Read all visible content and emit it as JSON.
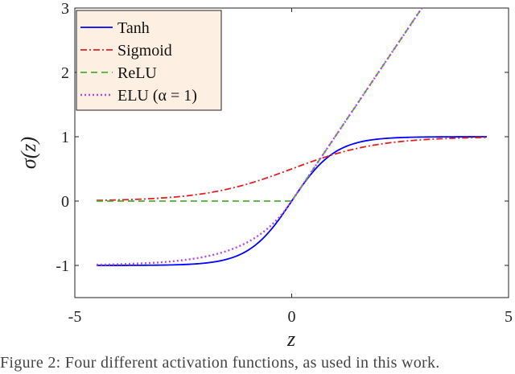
{
  "chart_data": {
    "type": "line",
    "xlabel": "z",
    "ylabel": "σ(z)",
    "xlim": [
      -5,
      5
    ],
    "ylim": [
      -1.5,
      3
    ],
    "x_ticks": [
      "-5",
      "0",
      "5"
    ],
    "y_ticks": [
      "-1",
      "0",
      "1",
      "2",
      "3"
    ],
    "grid": false,
    "legend_position": "top-left",
    "series": [
      {
        "name": "Tanh",
        "color": "#0000ff",
        "dash": "solid",
        "x": [
          -4.5,
          -4,
          -3.5,
          -3,
          -2.5,
          -2,
          -1.5,
          -1,
          -0.5,
          0,
          0.5,
          1,
          1.5,
          2,
          2.5,
          3,
          3.5,
          4,
          4.5
        ],
        "y": [
          -1.0,
          -1.0,
          -1.0,
          -0.99,
          -0.99,
          -0.96,
          -0.91,
          -0.76,
          -0.46,
          0,
          0.46,
          0.76,
          0.91,
          0.96,
          0.99,
          0.99,
          1.0,
          1.0,
          1.0
        ]
      },
      {
        "name": "Sigmoid",
        "color": "#e02020",
        "dash": "dashdot",
        "x": [
          -4.5,
          -4,
          -3.5,
          -3,
          -2.5,
          -2,
          -1.5,
          -1,
          -0.5,
          0,
          0.5,
          1,
          1.5,
          2,
          2.5,
          3,
          3.5,
          4,
          4.5
        ],
        "y": [
          0.01,
          0.02,
          0.03,
          0.05,
          0.08,
          0.12,
          0.18,
          0.27,
          0.38,
          0.5,
          0.62,
          0.73,
          0.82,
          0.88,
          0.92,
          0.95,
          0.97,
          0.98,
          0.99
        ]
      },
      {
        "name": "ReLU",
        "color": "#4caf2a",
        "dash": "dashed",
        "x": [
          -4.5,
          0,
          3.0
        ],
        "y": [
          0,
          0,
          3.0
        ]
      },
      {
        "name": "ELU (α = 1)",
        "color": "#b54ae8",
        "dash": "dotted",
        "x": [
          -4.5,
          -4,
          -3.5,
          -3,
          -2.5,
          -2,
          -1.5,
          -1,
          -0.5,
          0,
          3.0
        ],
        "y": [
          -0.99,
          -0.98,
          -0.97,
          -0.95,
          -0.92,
          -0.86,
          -0.78,
          -0.63,
          -0.39,
          0,
          3.0
        ]
      }
    ]
  },
  "caption": "Figure 2: Four different activation functions, as used in this work."
}
